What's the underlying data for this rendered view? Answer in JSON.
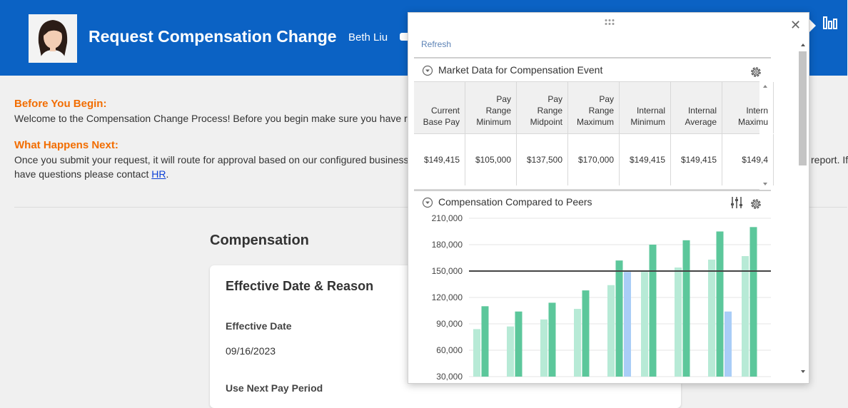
{
  "header": {
    "title": "Request Compensation Change",
    "user_name": "Beth Liu"
  },
  "intro": {
    "before_heading": "Before You Begin:",
    "before_text": "Welcome to the Compensation Change Process!  Before you begin make sure you have re",
    "next_heading": "What Happens Next:",
    "next_text_1": "Once you submit your request, it will route for approval based on our configured business",
    "next_text_1_tail": "report.  If",
    "next_text_2": "have questions please contact ",
    "hr_link": "HR"
  },
  "compensation": {
    "title": "Compensation",
    "card_title": "Effective Date & Reason",
    "effective_date_label": "Effective Date",
    "effective_date_value": "09/16/2023",
    "next_pay_label": "Use Next Pay Period"
  },
  "panel": {
    "refresh": "Refresh",
    "market_title": "Market Data for Compensation Event",
    "peers_title": "Compensation Compared to Peers",
    "table": {
      "headers": [
        "Current\nBase Pay",
        "Pay\nRange\nMinimum",
        "Pay\nRange\nMidpoint",
        "Pay\nRange\nMaximum",
        "Internal\nMinimum",
        "Internal\nAverage",
        "Intern\nMaximu"
      ],
      "values": [
        "$149,415",
        "$105,000",
        "$137,500",
        "$170,000",
        "$149,415",
        "$149,415",
        "$149,4"
      ]
    }
  },
  "colors": {
    "header_blue": "#0b62c4",
    "orange": "#f26d00",
    "light_green": "#b7ead6",
    "green": "#5cc79b",
    "blue_bar": "#a9cdf7"
  },
  "chart_data": {
    "type": "bar",
    "title": "Compensation Compared to Peers",
    "ylim": [
      30000,
      210000
    ],
    "yticks": [
      "210,000",
      "180,000",
      "150,000",
      "120,000",
      "90,000",
      "60,000",
      "30,000"
    ],
    "yticks_values": [
      210000,
      180000,
      150000,
      120000,
      90000,
      60000,
      30000
    ],
    "reference_line": 150000,
    "groups": [
      {
        "bars": [
          [
            84000,
            "light"
          ],
          [
            110000,
            "green"
          ]
        ]
      },
      {
        "bars": [
          [
            87000,
            "light"
          ],
          [
            104000,
            "green"
          ]
        ]
      },
      {
        "bars": [
          [
            95000,
            "light"
          ],
          [
            114000,
            "green"
          ]
        ]
      },
      {
        "bars": [
          [
            107000,
            "light"
          ],
          [
            128000,
            "green"
          ]
        ]
      },
      {
        "bars": [
          [
            134000,
            "light"
          ],
          [
            162000,
            "green"
          ],
          [
            149000,
            "blue"
          ]
        ]
      },
      {
        "bars": [
          [
            149000,
            "light"
          ],
          [
            180000,
            "green"
          ]
        ]
      },
      {
        "bars": [
          [
            154000,
            "light"
          ],
          [
            185000,
            "green"
          ]
        ]
      },
      {
        "bars": [
          [
            163000,
            "light"
          ],
          [
            195000,
            "green"
          ],
          [
            104000,
            "blue"
          ]
        ]
      },
      {
        "bars": [
          [
            167000,
            "light"
          ],
          [
            200000,
            "green"
          ]
        ]
      }
    ]
  }
}
